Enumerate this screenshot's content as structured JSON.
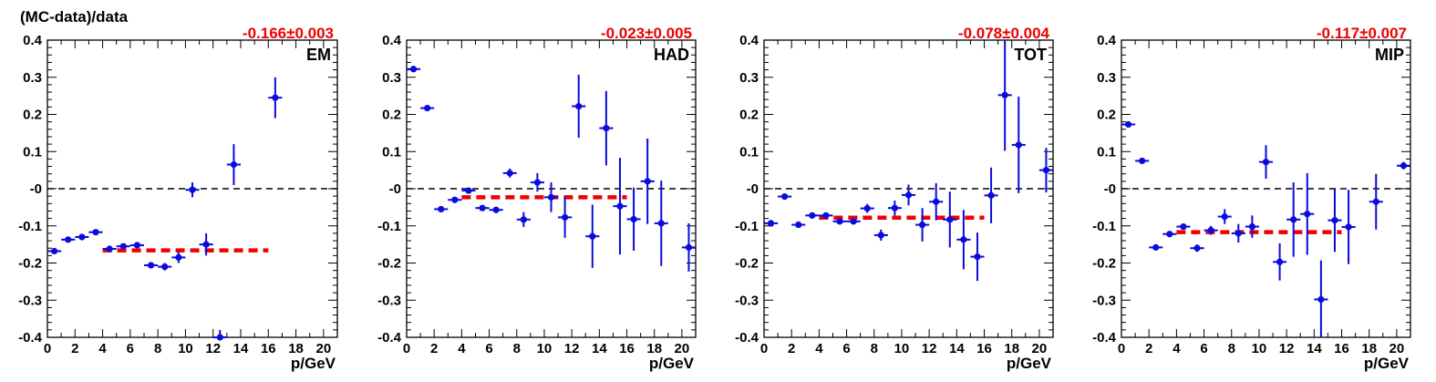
{
  "figure": {
    "ylabel": "(MC-data)/data"
  },
  "colors": {
    "points": "#0a0adc",
    "fit": "#ee0000",
    "zero_line": "#000000",
    "fit_label": "#ee0000"
  },
  "chart_data": [
    {
      "type": "scatter",
      "tag": "EM",
      "fit_label": "-0.166±0.003",
      "fit": {
        "value": -0.166,
        "x_range": [
          4,
          16
        ]
      },
      "xlabel": "p/GeV",
      "xlim": [
        0,
        21
      ],
      "ylim": [
        -0.4,
        0.4
      ],
      "x_ticks": [
        0,
        2,
        4,
        6,
        8,
        10,
        12,
        14,
        16,
        18,
        20
      ],
      "y_ticks": [
        -0.4,
        -0.3,
        -0.2,
        -0.1,
        0,
        0.1,
        0.2,
        0.3,
        0.4
      ],
      "y_tick_labels": [
        "-0.4",
        "-0.3",
        "-0.2",
        "-0.1",
        "-0",
        "0.1",
        "0.2",
        "0.3",
        "0.4"
      ],
      "zero_line": true,
      "points": [
        {
          "x": 0.5,
          "y": -0.168,
          "err": 0.005
        },
        {
          "x": 1.5,
          "y": -0.137,
          "err": 0.004
        },
        {
          "x": 2.5,
          "y": -0.13,
          "err": 0.004
        },
        {
          "x": 3.5,
          "y": -0.117,
          "err": 0.004
        },
        {
          "x": 4.5,
          "y": -0.162,
          "err": 0.006
        },
        {
          "x": 5.5,
          "y": -0.155,
          "err": 0.006
        },
        {
          "x": 6.5,
          "y": -0.152,
          "err": 0.007
        },
        {
          "x": 7.5,
          "y": -0.206,
          "err": 0.006
        },
        {
          "x": 8.5,
          "y": -0.21,
          "err": 0.01
        },
        {
          "x": 9.5,
          "y": -0.185,
          "err": 0.015
        },
        {
          "x": 10.5,
          "y": -0.003,
          "err": 0.02
        },
        {
          "x": 11.5,
          "y": -0.15,
          "err": 0.03
        },
        {
          "x": 12.5,
          "y": -0.4,
          "err": 0.02
        },
        {
          "x": 13.5,
          "y": 0.065,
          "err": 0.055
        },
        {
          "x": 16.5,
          "y": 0.245,
          "err": 0.055
        }
      ]
    },
    {
      "type": "scatter",
      "tag": "HAD",
      "fit_label": "-0.023±0.005",
      "fit": {
        "value": -0.023,
        "x_range": [
          4,
          16
        ]
      },
      "xlabel": "p/GeV",
      "xlim": [
        0,
        21
      ],
      "ylim": [
        -0.4,
        0.4
      ],
      "x_ticks": [
        0,
        2,
        4,
        6,
        8,
        10,
        12,
        14,
        16,
        18,
        20
      ],
      "y_ticks": [
        -0.4,
        -0.3,
        -0.2,
        -0.1,
        0,
        0.1,
        0.2,
        0.3,
        0.4
      ],
      "y_tick_labels": [
        "-0.4",
        "-0.3",
        "-0.2",
        "-0.1",
        "-0",
        "0.1",
        "0.2",
        "0.3",
        "0.4"
      ],
      "zero_line": true,
      "points": [
        {
          "x": 0.5,
          "y": 0.322,
          "err": 0.004
        },
        {
          "x": 1.5,
          "y": 0.217,
          "err": 0.004
        },
        {
          "x": 2.5,
          "y": -0.055,
          "err": 0.004
        },
        {
          "x": 3.5,
          "y": -0.03,
          "err": 0.004
        },
        {
          "x": 4.5,
          "y": -0.005,
          "err": 0.005
        },
        {
          "x": 5.5,
          "y": -0.052,
          "err": 0.005
        },
        {
          "x": 6.5,
          "y": -0.057,
          "err": 0.007
        },
        {
          "x": 7.5,
          "y": 0.042,
          "err": 0.012
        },
        {
          "x": 8.5,
          "y": -0.083,
          "err": 0.02
        },
        {
          "x": 9.5,
          "y": 0.017,
          "err": 0.025
        },
        {
          "x": 10.5,
          "y": -0.023,
          "err": 0.04
        },
        {
          "x": 11.5,
          "y": -0.077,
          "err": 0.055
        },
        {
          "x": 12.5,
          "y": 0.222,
          "err": 0.085
        },
        {
          "x": 13.5,
          "y": -0.128,
          "err": 0.085
        },
        {
          "x": 14.5,
          "y": 0.163,
          "err": 0.1
        },
        {
          "x": 15.5,
          "y": -0.047,
          "err": 0.13
        },
        {
          "x": 16.5,
          "y": -0.082,
          "err": 0.085
        },
        {
          "x": 17.5,
          "y": 0.02,
          "err": 0.115
        },
        {
          "x": 18.5,
          "y": -0.093,
          "err": 0.115
        },
        {
          "x": 20.5,
          "y": -0.158,
          "err": 0.065
        }
      ]
    },
    {
      "type": "scatter",
      "tag": "TOT",
      "fit_label": "-0.078±0.004",
      "fit": {
        "value": -0.078,
        "x_range": [
          4,
          16
        ]
      },
      "xlabel": "p/GeV",
      "xlim": [
        0,
        21
      ],
      "ylim": [
        -0.4,
        0.4
      ],
      "x_ticks": [
        0,
        2,
        4,
        6,
        8,
        10,
        12,
        14,
        16,
        18,
        20
      ],
      "y_ticks": [
        -0.4,
        -0.3,
        -0.2,
        -0.1,
        0,
        0.1,
        0.2,
        0.3,
        0.4
      ],
      "y_tick_labels": [
        "-0.4",
        "-0.3",
        "-0.2",
        "-0.1",
        "-0",
        "0.1",
        "0.2",
        "0.3",
        "0.4"
      ],
      "zero_line": true,
      "points": [
        {
          "x": 0.5,
          "y": -0.093,
          "err": 0.005
        },
        {
          "x": 1.5,
          "y": -0.021,
          "err": 0.004
        },
        {
          "x": 2.5,
          "y": -0.097,
          "err": 0.004
        },
        {
          "x": 3.5,
          "y": -0.072,
          "err": 0.004
        },
        {
          "x": 4.5,
          "y": -0.072,
          "err": 0.005
        },
        {
          "x": 5.5,
          "y": -0.088,
          "err": 0.006
        },
        {
          "x": 6.5,
          "y": -0.088,
          "err": 0.008
        },
        {
          "x": 7.5,
          "y": -0.053,
          "err": 0.012
        },
        {
          "x": 8.5,
          "y": -0.125,
          "err": 0.015
        },
        {
          "x": 9.5,
          "y": -0.052,
          "err": 0.02
        },
        {
          "x": 10.5,
          "y": -0.017,
          "err": 0.028
        },
        {
          "x": 11.5,
          "y": -0.097,
          "err": 0.045
        },
        {
          "x": 12.5,
          "y": -0.035,
          "err": 0.05
        },
        {
          "x": 13.5,
          "y": -0.083,
          "err": 0.075
        },
        {
          "x": 14.5,
          "y": -0.137,
          "err": 0.08
        },
        {
          "x": 15.5,
          "y": -0.183,
          "err": 0.065
        },
        {
          "x": 16.5,
          "y": -0.018,
          "err": 0.075
        },
        {
          "x": 17.5,
          "y": 0.252,
          "err": 0.15
        },
        {
          "x": 18.5,
          "y": 0.118,
          "err": 0.13
        },
        {
          "x": 20.5,
          "y": 0.05,
          "err": 0.06
        }
      ]
    },
    {
      "type": "scatter",
      "tag": "MIP",
      "fit_label": "-0.117±0.007",
      "fit": {
        "value": -0.117,
        "x_range": [
          4,
          16
        ]
      },
      "xlabel": "p/GeV",
      "xlim": [
        0,
        21
      ],
      "ylim": [
        -0.4,
        0.4
      ],
      "x_ticks": [
        0,
        2,
        4,
        6,
        8,
        10,
        12,
        14,
        16,
        18,
        20
      ],
      "y_ticks": [
        -0.4,
        -0.3,
        -0.2,
        -0.1,
        0,
        0.1,
        0.2,
        0.3,
        0.4
      ],
      "y_tick_labels": [
        "-0.4",
        "-0.3",
        "-0.2",
        "-0.1",
        "-0",
        "0.1",
        "0.2",
        "0.3",
        "0.4"
      ],
      "zero_line": true,
      "points": [
        {
          "x": 0.5,
          "y": 0.173,
          "err": 0.004
        },
        {
          "x": 1.5,
          "y": 0.075,
          "err": 0.004
        },
        {
          "x": 2.5,
          "y": -0.158,
          "err": 0.005
        },
        {
          "x": 3.5,
          "y": -0.122,
          "err": 0.005
        },
        {
          "x": 4.5,
          "y": -0.102,
          "err": 0.008
        },
        {
          "x": 5.5,
          "y": -0.16,
          "err": 0.01
        },
        {
          "x": 6.5,
          "y": -0.112,
          "err": 0.012
        },
        {
          "x": 7.5,
          "y": -0.075,
          "err": 0.02
        },
        {
          "x": 8.5,
          "y": -0.12,
          "err": 0.025
        },
        {
          "x": 9.5,
          "y": -0.102,
          "err": 0.03
        },
        {
          "x": 10.5,
          "y": 0.072,
          "err": 0.045
        },
        {
          "x": 11.5,
          "y": -0.197,
          "err": 0.05
        },
        {
          "x": 12.5,
          "y": -0.083,
          "err": 0.1
        },
        {
          "x": 13.5,
          "y": -0.068,
          "err": 0.11
        },
        {
          "x": 14.5,
          "y": -0.298,
          "err": 0.105
        },
        {
          "x": 15.5,
          "y": -0.085,
          "err": 0.085
        },
        {
          "x": 16.5,
          "y": -0.103,
          "err": 0.1
        },
        {
          "x": 18.5,
          "y": -0.035,
          "err": 0.075
        },
        {
          "x": 20.5,
          "y": 0.062,
          "err": 0.01
        }
      ]
    }
  ]
}
